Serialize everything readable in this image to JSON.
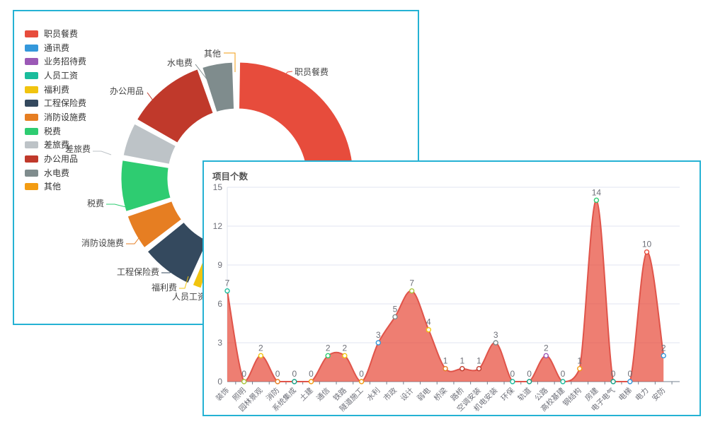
{
  "page": {
    "background": "#ffffff",
    "panel_border_color": "#25b2d4"
  },
  "chart_data": [
    {
      "type": "pie",
      "subtype": "donut",
      "legend_position": "left",
      "slices": [
        {
          "name": "职员餐费",
          "color": "#e74c3c",
          "value_pct_est": 34.7
        },
        {
          "name": "通讯费",
          "color": "#3498db",
          "value_pct_est": 10.3
        },
        {
          "name": "业务招待费",
          "color": "#9b59b6",
          "value_pct_est": 2.2
        },
        {
          "name": "人员工资",
          "color": "#1abc9c",
          "value_pct_est": 7.5
        },
        {
          "name": "福利费",
          "color": "#f1c40f",
          "value_pct_est": 1.9
        },
        {
          "name": "工程保险费",
          "color": "#34495e",
          "value_pct_est": 7.8
        },
        {
          "name": "消防设施费",
          "color": "#e67e22",
          "value_pct_est": 5.6
        },
        {
          "name": "税费",
          "color": "#2ecc71",
          "value_pct_est": 7.8
        },
        {
          "name": "差旅费",
          "color": "#bdc3c7",
          "value_pct_est": 5.3
        },
        {
          "name": "办公用品",
          "color": "#c0392b",
          "value_pct_est": 11.7
        },
        {
          "name": "水电费",
          "color": "#7f8c8d",
          "value_pct_est": 4.9
        },
        {
          "name": "其他",
          "color": "#f39c12",
          "value_pct_est": 0.3
        }
      ]
    },
    {
      "type": "area",
      "title": "项目个数",
      "categories": [
        "装饰",
        "照明",
        "园林景观",
        "消防",
        "系统集成",
        "土建",
        "通信",
        "铁路",
        "隧道施工",
        "水利",
        "市政",
        "设计",
        "弱电",
        "桥梁",
        "路桥",
        "空调安装",
        "机电安装",
        "环保",
        "轨道",
        "公路",
        "高校基建",
        "钢结构",
        "房建",
        "电子电气",
        "电梯",
        "电力",
        "安防"
      ],
      "values": [
        7,
        0,
        2,
        0,
        0,
        0,
        2,
        2,
        0,
        3,
        5,
        7,
        4,
        1,
        1,
        1,
        3,
        0,
        0,
        2,
        0,
        1,
        14,
        0,
        0,
        10,
        2
      ],
      "point_colors": [
        "#1abc9c",
        "#a8c63c",
        "#f1c40f",
        "#e67e22",
        "#16a085",
        "#f39c12",
        "#2ecc71",
        "#f1c40f",
        "#f39c12",
        "#3498db",
        "#7f8c8d",
        "#a8c63c",
        "#f1c40f",
        "#e67e22",
        "#c0392b",
        "#c0392b",
        "#7f8c8d",
        "#1abc9c",
        "#16a085",
        "#9b59b6",
        "#1abc9c",
        "#f39c12",
        "#2ecc71",
        "#16a085",
        "#3498db",
        "#e74c3c",
        "#3498db"
      ],
      "ylim": [
        0,
        15
      ],
      "yticks": [
        0,
        3,
        6,
        9,
        12,
        15
      ],
      "x_label_rotate": 45,
      "grid": true,
      "line_color": "#e0544a",
      "fill_color": "rgba(231,76,60,0.72)",
      "axis_label_color": "#6e7079",
      "value_label_color": "#6e7079"
    }
  ]
}
